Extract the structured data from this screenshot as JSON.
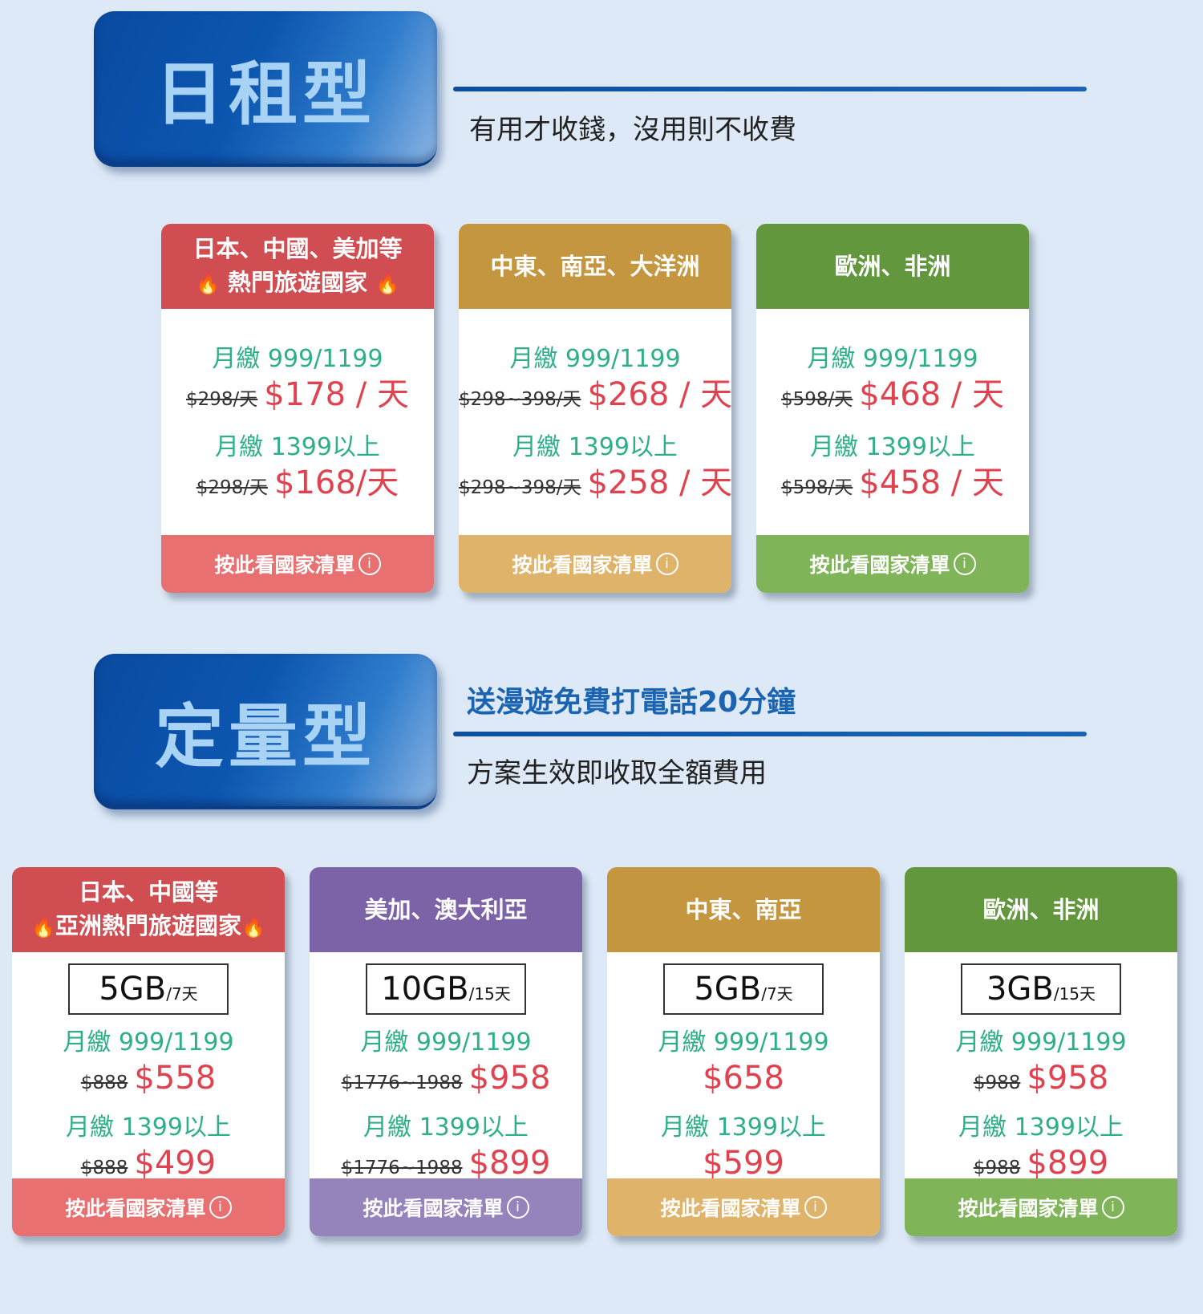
{
  "daily": {
    "title": "日租型",
    "subtitle": "有用才收錢，沒用則不收費",
    "cards": [
      {
        "head1": "日本、中國、美加等",
        "head2": "熱門旅遊國家",
        "tier1": "月繳 999/1199",
        "old1": "$298/天",
        "new1": "$178 / 天",
        "tier2": "月繳 1399以上",
        "old2": "$298/天",
        "new2": "$168/天",
        "foot": "按此看國家清單"
      },
      {
        "head1": "中東、南亞、大洋洲",
        "tier1": "月繳 999/1199",
        "old1": "$298~398/天",
        "new1": "$268 / 天",
        "tier2": "月繳 1399以上",
        "old2": "$298~398/天",
        "new2": "$258 / 天",
        "foot": "按此看國家清單"
      },
      {
        "head1": "歐洲、非洲",
        "tier1": "月繳 999/1199",
        "old1": "$598/天",
        "new1": "$468 / 天",
        "tier2": "月繳 1399以上",
        "old2": "$598/天",
        "new2": "$458 / 天",
        "foot": "按此看國家清單"
      }
    ]
  },
  "fixed": {
    "title": "定量型",
    "note": "送漫遊免費打電話20分鐘",
    "subtitle": "方案生效即收取全額費用",
    "cards": [
      {
        "head1": "日本、中國等",
        "head2": "亞洲熱門旅遊國家",
        "data": "5GB",
        "period": "/7天",
        "tier1": "月繳 999/1199",
        "old1": "$888",
        "new1": "$558",
        "tier2": "月繳 1399以上",
        "old2": "$888",
        "new2": "$499",
        "foot": "按此看國家清單"
      },
      {
        "head1": "美加、澳大利亞",
        "data": "10GB",
        "period": "/15天",
        "tier1": "月繳 999/1199",
        "old1": "$1776~1988",
        "new1": "$958",
        "tier2": "月繳 1399以上",
        "old2": "$1776~1988",
        "new2": "$899",
        "foot": "按此看國家清單"
      },
      {
        "head1": "中東、南亞",
        "data": "5GB",
        "period": "/7天",
        "tier1": "月繳 999/1199",
        "new1": "$658",
        "tier2": "月繳 1399以上",
        "new2": "$599",
        "foot": "按此看國家清單"
      },
      {
        "head1": "歐洲、非洲",
        "data": "3GB",
        "period": "/15天",
        "tier1": "月繳 999/1199",
        "old1": "$988",
        "new1": "$958",
        "tier2": "月繳 1399以上",
        "old2": "$988",
        "new2": "$899",
        "foot": "按此看國家清單"
      }
    ]
  },
  "icons": {
    "fire": "🔥",
    "info": "i"
  }
}
